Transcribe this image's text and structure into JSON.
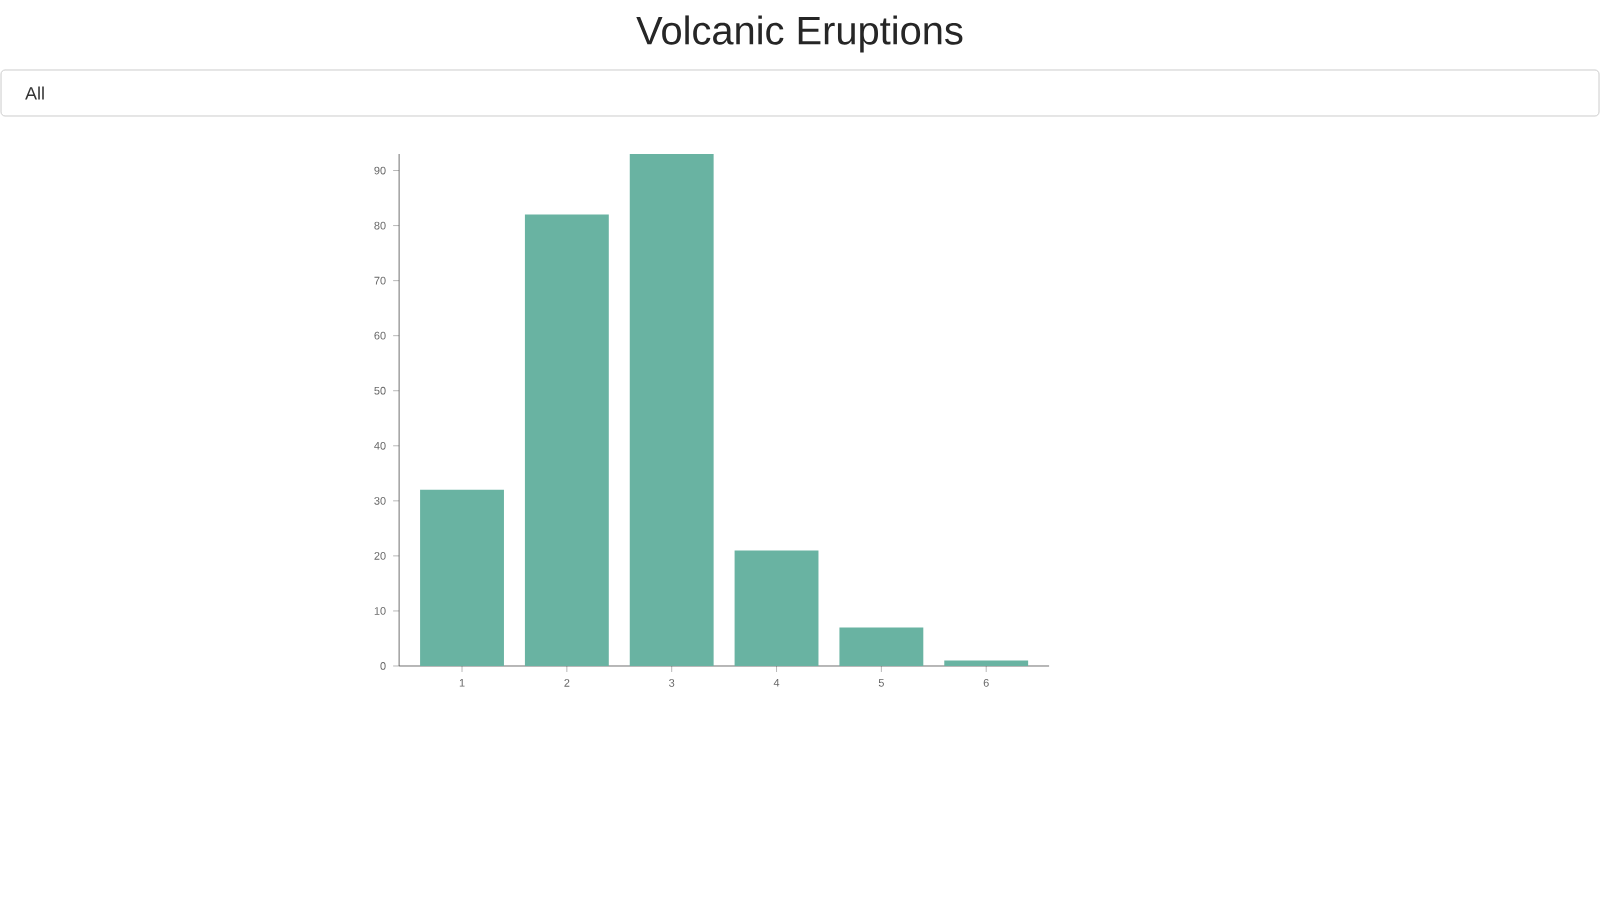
{
  "chart_data": {
    "type": "bar",
    "title": "Volcanic Eruptions",
    "annotations": [
      "All"
    ],
    "categories": [
      "1",
      "2",
      "3",
      "4",
      "5",
      "6"
    ],
    "values": [
      32,
      82,
      93,
      21,
      7,
      1
    ],
    "color": "#69b3a2",
    "ylim": [
      0,
      93
    ],
    "yticks": [
      0,
      10,
      20,
      30,
      40,
      50,
      60,
      70,
      80,
      90
    ],
    "grid": false
  }
}
